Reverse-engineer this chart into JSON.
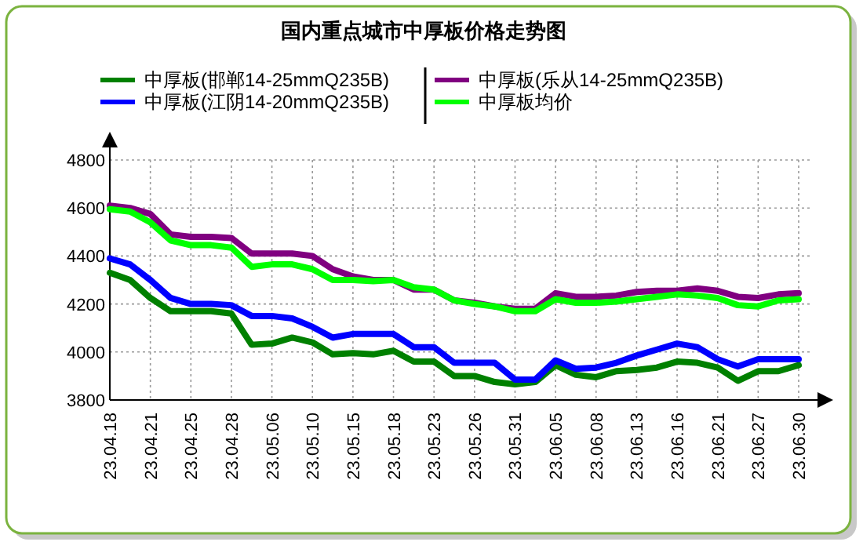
{
  "chart_data": {
    "type": "line",
    "title": "国内重点城市中厚板价格走势图",
    "categories": [
      "23.04.18",
      null,
      "23.04.21",
      null,
      "23.04.25",
      null,
      "23.04.28",
      null,
      "23.05.06",
      null,
      "23.05.10",
      null,
      "23.05.15",
      null,
      "23.05.18",
      null,
      "23.05.23",
      null,
      "23.05.26",
      null,
      "23.05.31",
      null,
      "23.06.05",
      null,
      "23.06.08",
      null,
      "23.06.13",
      null,
      "23.06.16",
      null,
      "23.06.21",
      null,
      "23.06.27",
      null,
      "23.06.30"
    ],
    "series": [
      {
        "name": "中厚板(邯郸14-25mmQ235B)",
        "color": "#008000",
        "values": [
          4330,
          4300,
          4225,
          4170,
          4170,
          4170,
          4160,
          4030,
          4035,
          4060,
          4040,
          3990,
          3995,
          3990,
          4005,
          3960,
          3960,
          3900,
          3900,
          3875,
          3865,
          3875,
          3945,
          3905,
          3895,
          3920,
          3925,
          3935,
          3960,
          3955,
          3935,
          3880,
          3920,
          3920,
          3945
        ]
      },
      {
        "name": "中厚板(乐从14-25mmQ235B)",
        "color": "#800080",
        "values": [
          4610,
          4600,
          4575,
          4490,
          4480,
          4480,
          4475,
          4410,
          4410,
          4410,
          4400,
          4345,
          4315,
          4300,
          4300,
          4260,
          4260,
          4215,
          4205,
          4190,
          4180,
          4180,
          4245,
          4230,
          4230,
          4235,
          4250,
          4255,
          4255,
          4265,
          4255,
          4230,
          4225,
          4240,
          4245
        ]
      },
      {
        "name": "中厚板(江阴14-20mmQ235B)",
        "color": "#0000ff",
        "values": [
          4390,
          4365,
          4300,
          4225,
          4200,
          4200,
          4195,
          4150,
          4150,
          4140,
          4105,
          4060,
          4075,
          4075,
          4075,
          4020,
          4020,
          3955,
          3955,
          3955,
          3885,
          3885,
          3965,
          3930,
          3935,
          3955,
          3985,
          4010,
          4035,
          4020,
          3970,
          3940,
          3970,
          3970,
          3970
        ]
      },
      {
        "name": "中厚板均价",
        "color": "#00ff00",
        "values": [
          4595,
          4585,
          4540,
          4465,
          4445,
          4445,
          4435,
          4355,
          4365,
          4365,
          4345,
          4300,
          4300,
          4295,
          4300,
          4270,
          4260,
          4215,
          4200,
          4190,
          4170,
          4170,
          4220,
          4205,
          4205,
          4210,
          4220,
          4230,
          4240,
          4235,
          4225,
          4195,
          4190,
          4215,
          4220
        ]
      }
    ],
    "ylim": [
      3800,
      4800
    ],
    "yticks": [
      3800,
      4000,
      4200,
      4400,
      4600,
      4800
    ],
    "grid": true,
    "legend": "top"
  }
}
